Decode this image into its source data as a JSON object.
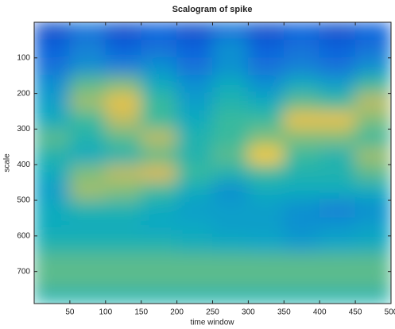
{
  "chart_data": {
    "type": "heatmap",
    "title": "Scalogram of spike",
    "x_label": "time window",
    "y_label": "scale",
    "x_edges": [
      0,
      50,
      100,
      150,
      200,
      250,
      300,
      350,
      400,
      450,
      500
    ],
    "y_edges": [
      0,
      50,
      100,
      150,
      200,
      250,
      300,
      350,
      400,
      450,
      500,
      550,
      600,
      650,
      700,
      750,
      790
    ],
    "values": [
      [
        0.1,
        0.2,
        0.1,
        0.15,
        0.1,
        0.2,
        0.1,
        0.15,
        0.1,
        0.15
      ],
      [
        0.15,
        0.25,
        0.15,
        0.2,
        0.15,
        0.3,
        0.15,
        0.2,
        0.15,
        0.2
      ],
      [
        0.2,
        0.3,
        0.25,
        0.3,
        0.2,
        0.3,
        0.2,
        0.25,
        0.2,
        0.3
      ],
      [
        0.3,
        0.55,
        0.6,
        0.4,
        0.3,
        0.4,
        0.3,
        0.4,
        0.35,
        0.5
      ],
      [
        0.35,
        0.65,
        0.8,
        0.5,
        0.35,
        0.45,
        0.4,
        0.55,
        0.5,
        0.7
      ],
      [
        0.4,
        0.5,
        0.7,
        0.5,
        0.4,
        0.5,
        0.5,
        0.8,
        0.8,
        0.6
      ],
      [
        0.55,
        0.45,
        0.55,
        0.7,
        0.45,
        0.5,
        0.6,
        0.6,
        0.6,
        0.5
      ],
      [
        0.45,
        0.4,
        0.45,
        0.55,
        0.45,
        0.55,
        0.85,
        0.5,
        0.45,
        0.65
      ],
      [
        0.4,
        0.6,
        0.7,
        0.75,
        0.5,
        0.45,
        0.5,
        0.45,
        0.45,
        0.55
      ],
      [
        0.35,
        0.65,
        0.6,
        0.5,
        0.4,
        0.3,
        0.4,
        0.4,
        0.4,
        0.4
      ],
      [
        0.4,
        0.45,
        0.45,
        0.4,
        0.35,
        0.35,
        0.35,
        0.3,
        0.25,
        0.3
      ],
      [
        0.4,
        0.4,
        0.4,
        0.38,
        0.38,
        0.35,
        0.35,
        0.3,
        0.32,
        0.35
      ],
      [
        0.45,
        0.45,
        0.45,
        0.45,
        0.42,
        0.4,
        0.38,
        0.35,
        0.38,
        0.4
      ],
      [
        0.55,
        0.55,
        0.55,
        0.55,
        0.55,
        0.55,
        0.55,
        0.55,
        0.55,
        0.55
      ],
      [
        0.55,
        0.55,
        0.55,
        0.55,
        0.55,
        0.55,
        0.55,
        0.55,
        0.55,
        0.55
      ],
      [
        0.45,
        0.45,
        0.45,
        0.45,
        0.45,
        0.45,
        0.45,
        0.45,
        0.45,
        0.45
      ]
    ],
    "colormap": [
      "#352a87",
      "#0f5cdd",
      "#1481d6",
      "#06a7c6",
      "#38b99e",
      "#92bf73",
      "#d9ba56",
      "#fcce2e",
      "#f9fb0e"
    ],
    "clim": [
      0,
      1
    ],
    "xlim": [
      0,
      500
    ],
    "ylim": [
      0,
      790
    ],
    "xticks": [
      50,
      100,
      150,
      200,
      250,
      300,
      350,
      400,
      450,
      500
    ],
    "yticks": [
      100,
      200,
      300,
      400,
      500,
      600,
      700
    ],
    "y_reversed": true
  }
}
